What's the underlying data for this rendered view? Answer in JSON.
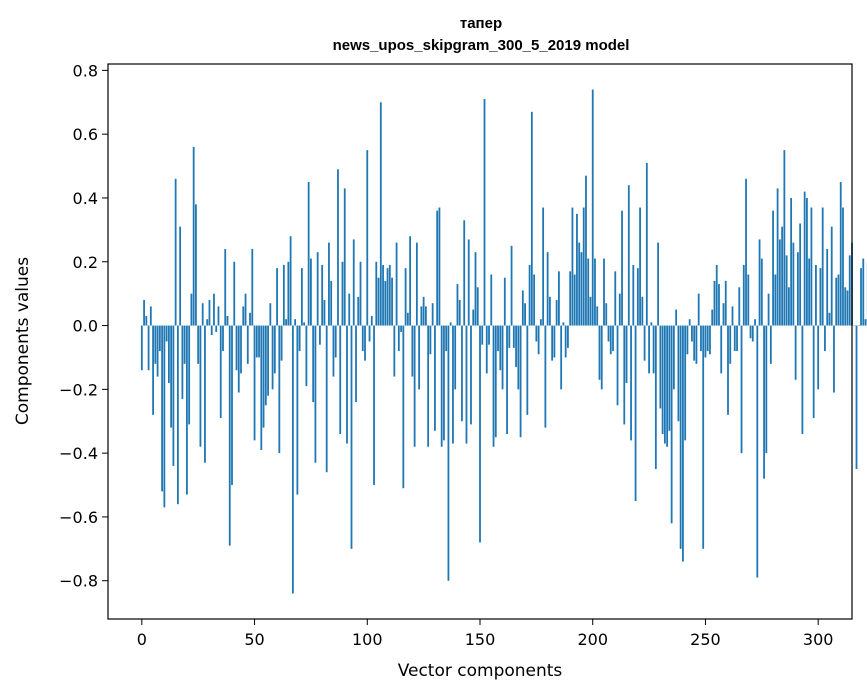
{
  "chart_data": {
    "type": "bar",
    "title": [
      "тапер",
      "news_upos_skipgram_300_5_2019 model"
    ],
    "xlabel": "Vector components",
    "ylabel": "Components values",
    "xlim": [
      -15,
      315
    ],
    "ylim": [
      -0.92,
      0.82
    ],
    "xticks": [
      0,
      50,
      100,
      150,
      200,
      250,
      300
    ],
    "yticks": [
      -0.8,
      -0.6,
      -0.4,
      -0.2,
      0.0,
      0.2,
      0.4,
      0.6,
      0.8
    ],
    "ytick_labels": [
      "−0.8",
      "−0.6",
      "−0.4",
      "−0.2",
      "0.0",
      "0.2",
      "0.4",
      "0.6",
      "0.8"
    ],
    "bar_color": "#1f77b4",
    "grid": false,
    "values": [
      -0.14,
      0.08,
      0.03,
      -0.14,
      0.06,
      -0.28,
      -0.12,
      -0.16,
      -0.08,
      -0.52,
      -0.57,
      -0.05,
      -0.18,
      -0.32,
      -0.44,
      0.46,
      -0.56,
      0.31,
      -0.23,
      -0.12,
      -0.53,
      -0.31,
      0.1,
      0.56,
      0.38,
      -0.12,
      -0.38,
      0.07,
      -0.43,
      0.02,
      0.08,
      -0.03,
      0.1,
      -0.02,
      0.06,
      -0.29,
      -0.08,
      0.24,
      0.03,
      -0.69,
      -0.5,
      0.2,
      -0.14,
      -0.21,
      -0.15,
      0.06,
      0.1,
      -0.12,
      0.04,
      0.24,
      -0.36,
      -0.1,
      -0.1,
      -0.39,
      -0.32,
      -0.25,
      -0.22,
      0.07,
      -0.2,
      -0.15,
      0.18,
      -0.4,
      -0.11,
      0.19,
      0.02,
      0.2,
      0.28,
      -0.84,
      0.02,
      -0.53,
      -0.08,
      0.18,
      0.01,
      -0.19,
      0.45,
      0.21,
      -0.24,
      -0.43,
      0.23,
      -0.06,
      0.19,
      0.08,
      -0.46,
      0.26,
      0.14,
      -0.16,
      -0.1,
      0.49,
      -0.34,
      0.2,
      0.43,
      -0.37,
      0.1,
      -0.7,
      0.27,
      -0.24,
      0.09,
      0.2,
      -0.08,
      -0.11,
      0.55,
      -0.05,
      0.03,
      -0.5,
      0.2,
      0.15,
      0.7,
      0.19,
      0.14,
      0.18,
      0.19,
      0.15,
      -0.16,
      0.26,
      -0.08,
      -0.02,
      -0.51,
      0.18,
      0.04,
      0.28,
      -0.16,
      -0.38,
      0.26,
      -0.2,
      0.06,
      0.09,
      0.06,
      -0.38,
      -0.09,
      0.07,
      -0.33,
      0.36,
      0.37,
      -0.38,
      -0.36,
      -0.08,
      -0.8,
      0.01,
      -0.37,
      -0.2,
      0.13,
      0.08,
      -0.3,
      0.33,
      -0.37,
      0.27,
      -0.31,
      0.05,
      0.23,
      0.12,
      -0.68,
      -0.06,
      0.71,
      -0.15,
      -0.06,
      0.16,
      -0.38,
      -0.35,
      -0.08,
      -0.14,
      -0.2,
      0.15,
      -0.34,
      -0.07,
      0.25,
      -0.07,
      -0.13,
      -0.2,
      -0.35,
      0.11,
      0.07,
      -0.28,
      0.19,
      0.67,
      0.16,
      -0.05,
      -0.09,
      0.02,
      0.37,
      -0.32,
      0.23,
      0.09,
      -0.11,
      -0.1,
      0.08,
      0.17,
      -0.2,
      0.01,
      -0.1,
      -0.07,
      0.17,
      0.37,
      0.16,
      0.35,
      0.26,
      0.23,
      0.37,
      0.47,
      0.21,
      0.09,
      0.74,
      0.21,
      0.06,
      -0.17,
      -0.2,
      0.21,
      0.07,
      -0.05,
      -0.09,
      -0.08,
      0.17,
      -0.25,
      0.1,
      0.36,
      -0.31,
      -0.18,
      0.44,
      -0.36,
      0.19,
      -0.55,
      0.18,
      0.37,
      0.09,
      -0.11,
      0.51,
      -0.15,
      0.01,
      -0.15,
      -0.45,
      0.26,
      -0.26,
      -0.34,
      -0.37,
      -0.38,
      -0.33,
      -0.62,
      -0.2,
      0.05,
      -0.3,
      -0.7,
      -0.74,
      -0.36,
      -0.09,
      0.02,
      -0.05,
      -0.11,
      -0.12,
      0.1,
      -0.08,
      -0.7,
      -0.1,
      -0.08,
      -0.09,
      0.05,
      0.14,
      0.19,
      0.13,
      -0.15,
      0.07,
      0.14,
      -0.28,
      -0.12,
      0.06,
      -0.08,
      -0.08,
      0.12,
      -0.4,
      0.19,
      0.46,
      0.16,
      -0.04,
      -0.05,
      0.02,
      -0.79,
      0.27,
      0.21,
      -0.48,
      -0.4,
      0.1,
      -0.12,
      0.36,
      0.16,
      0.43,
      0.27,
      0.31,
      0.55,
      0.22,
      0.12,
      0.4,
      0.26,
      -0.17,
      0.23,
      0.32,
      -0.34,
      0.42,
      0.4,
      0.21,
      0.37,
      -0.29,
      0.19,
      -0.2,
      0.18,
      0.37,
      -0.08,
      0.24,
      0.04,
      0.31,
      -0.21,
      0.15,
      0.16,
      0.45,
      0.37,
      0.12,
      0.11,
      0.22,
      0.26,
      0.0,
      -0.45,
      0.0,
      0.18,
      0.21,
      0.02,
      0.2
    ]
  }
}
